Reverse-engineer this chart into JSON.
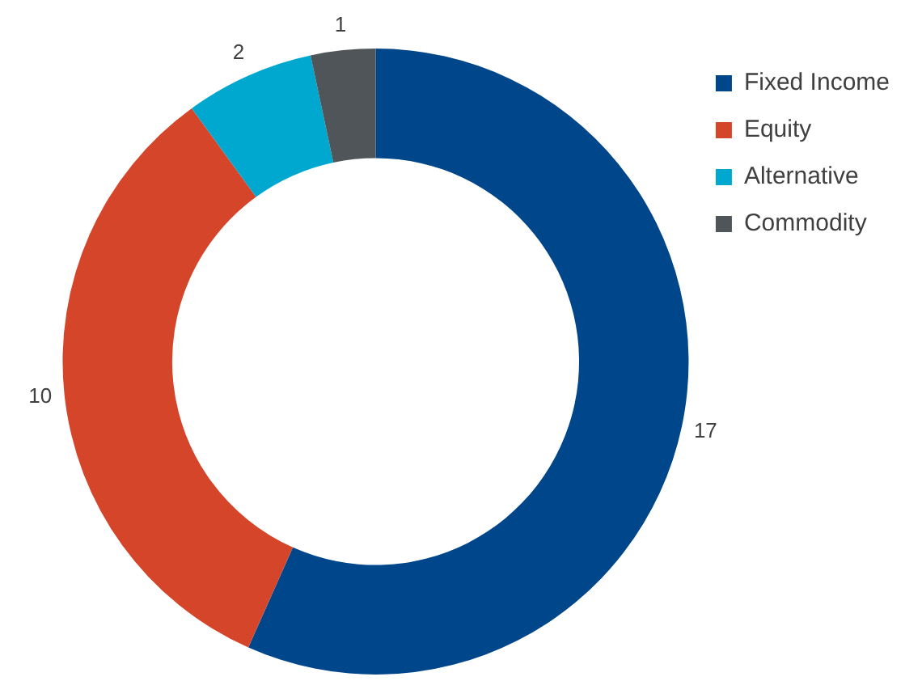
{
  "chart_data": {
    "type": "donut",
    "categories": [
      "Fixed Income",
      "Equity",
      "Alternative",
      "Commodity"
    ],
    "values": [
      17,
      10,
      2,
      1
    ],
    "colors": [
      "#00468b",
      "#d4452a",
      "#00a8d0",
      "#4f5559"
    ],
    "data_labels": true,
    "legend": "right"
  }
}
